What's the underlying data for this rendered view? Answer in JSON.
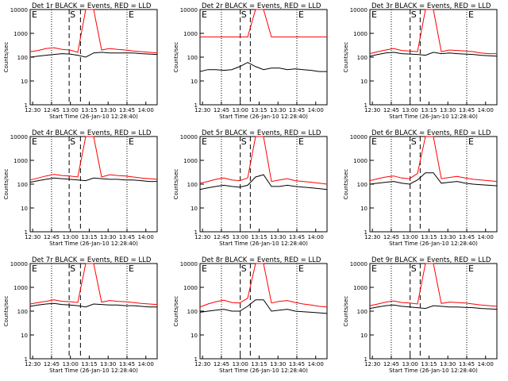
{
  "chart_data": [
    {
      "type": "line",
      "title": "Det 1r BLACK = Events, RED = LLD",
      "ylabel": "Counts/sec",
      "xlabel": "Start Time (26-Jan-10 12:28:40)",
      "yscale": "log",
      "ylim": [
        1,
        10000
      ],
      "ytick_labels": [
        "1",
        "10",
        "100",
        "1000",
        "10000"
      ],
      "xtick_labels": [
        "12:30",
        "12:45",
        "13:00",
        "13:15",
        "13:30",
        "13:45",
        "14:00"
      ],
      "markers": [
        "E",
        "S",
        "E"
      ],
      "event_start": "12:59",
      "event_end": "13:08",
      "series": [
        {
          "color": "#000000",
          "values": [
            100,
            110,
            120,
            130,
            140,
            135,
            120,
            100,
            150,
            160,
            150,
            150,
            150,
            150,
            140,
            135,
            130
          ]
        },
        {
          "color": "#ff0000",
          "values": [
            170,
            190,
            230,
            250,
            210,
            200,
            160,
            10000,
            10000,
            200,
            230,
            210,
            200,
            180,
            170,
            160,
            150
          ]
        }
      ]
    },
    {
      "type": "line",
      "title": "Det 2r BLACK = Events, RED = LLD",
      "ylabel": "Counts/sec",
      "xlabel": "Start Time (26-Jan-10 12:28:40)",
      "yscale": "log",
      "ylim": [
        1,
        10000
      ],
      "ytick_labels": [
        "1",
        "10",
        "100",
        "1000",
        "10000"
      ],
      "xtick_labels": [
        "12:30",
        "12:45",
        "13:00",
        "13:15",
        "13:30",
        "13:45",
        "14:00"
      ],
      "markers": [
        "E",
        "S",
        "E"
      ],
      "event_start": "13:00",
      "event_end": "13:08",
      "series": [
        {
          "color": "#000000",
          "values": [
            25,
            30,
            30,
            28,
            30,
            40,
            60,
            40,
            30,
            35,
            35,
            30,
            32,
            30,
            28,
            25,
            25
          ]
        },
        {
          "color": "#ff0000",
          "values": [
            700,
            700,
            700,
            700,
            700,
            700,
            700,
            10000,
            10000,
            700,
            700,
            700,
            700,
            700,
            700,
            700,
            700
          ]
        }
      ]
    },
    {
      "type": "line",
      "title": "Det 3r BLACK = Events, RED = LLD",
      "ylabel": "Counts/sec",
      "xlabel": "Start Time (26-Jan-10 12:28:40)",
      "yscale": "log",
      "ylim": [
        1,
        10000
      ],
      "ytick_labels": [
        "1",
        "10",
        "100",
        "1000",
        "10000"
      ],
      "xtick_labels": [
        "12:30",
        "12:45",
        "13:00",
        "13:15",
        "13:30",
        "13:45",
        "14:00"
      ],
      "markers": [
        "E",
        "S",
        "E"
      ],
      "event_start": "13:00",
      "event_end": "13:08",
      "series": [
        {
          "color": "#000000",
          "values": [
            110,
            130,
            150,
            160,
            140,
            135,
            130,
            120,
            160,
            140,
            150,
            140,
            135,
            130,
            120,
            115,
            110
          ]
        },
        {
          "color": "#ff0000",
          "values": [
            140,
            170,
            200,
            230,
            190,
            180,
            170,
            10000,
            10000,
            170,
            200,
            190,
            180,
            170,
            150,
            140,
            140
          ]
        }
      ]
    },
    {
      "type": "line",
      "title": "Det 4r BLACK = Events, RED = LLD",
      "ylabel": "Counts/sec",
      "xlabel": "Start Time (26-Jan-10 12:28:40)",
      "yscale": "log",
      "ylim": [
        1,
        10000
      ],
      "ytick_labels": [
        "1",
        "10",
        "100",
        "1000",
        "10000"
      ],
      "xtick_labels": [
        "12:30",
        "12:45",
        "13:00",
        "13:15",
        "13:30",
        "13:45",
        "14:00"
      ],
      "markers": [
        "E",
        "S",
        "E"
      ],
      "event_start": "12:59",
      "event_end": "13:08",
      "series": [
        {
          "color": "#000000",
          "values": [
            120,
            140,
            160,
            180,
            170,
            160,
            150,
            140,
            180,
            170,
            160,
            160,
            150,
            150,
            140,
            130,
            130
          ]
        },
        {
          "color": "#ff0000",
          "values": [
            150,
            180,
            220,
            260,
            230,
            220,
            200,
            10000,
            10000,
            200,
            250,
            230,
            220,
            200,
            180,
            170,
            160
          ]
        }
      ]
    },
    {
      "type": "line",
      "title": "Det 5r BLACK = Events, RED = LLD",
      "ylabel": "Counts/sec",
      "xlabel": "Start Time (26-Jan-10 12:28:40)",
      "yscale": "log",
      "ylim": [
        1,
        10000
      ],
      "ytick_labels": [
        "1",
        "10",
        "100",
        "1000",
        "10000"
      ],
      "xtick_labels": [
        "12:30",
        "12:45",
        "13:00",
        "13:15",
        "13:30",
        "13:45",
        "14:00"
      ],
      "markers": [
        "E",
        "S",
        "E"
      ],
      "event_start": "13:00",
      "event_end": "13:08",
      "series": [
        {
          "color": "#000000",
          "values": [
            60,
            70,
            80,
            90,
            80,
            75,
            90,
            200,
            250,
            80,
            80,
            90,
            80,
            75,
            70,
            65,
            60
          ]
        },
        {
          "color": "#ff0000",
          "values": [
            110,
            130,
            160,
            180,
            150,
            140,
            180,
            10000,
            10000,
            130,
            150,
            170,
            140,
            130,
            120,
            110,
            100
          ]
        }
      ]
    },
    {
      "type": "line",
      "title": "Det 6r BLACK = Events, RED = LLD",
      "ylabel": "Counts/sec",
      "xlabel": "Start Time (26-Jan-10 12:28:40)",
      "yscale": "log",
      "ylim": [
        1,
        10000
      ],
      "ytick_labels": [
        "1",
        "10",
        "100",
        "1000",
        "10000"
      ],
      "xtick_labels": [
        "12:30",
        "12:45",
        "13:00",
        "13:15",
        "13:30",
        "13:45",
        "14:00"
      ],
      "markers": [
        "E",
        "S",
        "E"
      ],
      "event_start": "13:00",
      "event_end": "13:08",
      "series": [
        {
          "color": "#000000",
          "values": [
            100,
            110,
            120,
            130,
            110,
            100,
            150,
            300,
            300,
            110,
            120,
            130,
            110,
            100,
            95,
            90,
            85
          ]
        },
        {
          "color": "#ff0000",
          "values": [
            140,
            170,
            200,
            220,
            180,
            170,
            280,
            10000,
            10000,
            170,
            190,
            210,
            180,
            160,
            150,
            140,
            130
          ]
        }
      ]
    },
    {
      "type": "line",
      "title": "Det 7r BLACK = Events, RED = LLD",
      "ylabel": "Counts/sec",
      "xlabel": "Start Time (26-Jan-10 12:28:40)",
      "yscale": "log",
      "ylim": [
        1,
        10000
      ],
      "ytick_labels": [
        "1",
        "10",
        "100",
        "1000",
        "10000"
      ],
      "xtick_labels": [
        "12:30",
        "12:45",
        "13:00",
        "13:15",
        "13:30",
        "13:45",
        "14:00"
      ],
      "markers": [
        "E",
        "S",
        "E"
      ],
      "event_start": "12:59",
      "event_end": "13:08",
      "series": [
        {
          "color": "#000000",
          "values": [
            160,
            180,
            200,
            210,
            190,
            180,
            170,
            150,
            200,
            190,
            180,
            180,
            170,
            170,
            160,
            150,
            150
          ]
        },
        {
          "color": "#ff0000",
          "values": [
            200,
            230,
            260,
            300,
            260,
            250,
            230,
            10000,
            10000,
            240,
            280,
            260,
            250,
            230,
            210,
            200,
            190
          ]
        }
      ]
    },
    {
      "type": "line",
      "title": "Det 8r BLACK = Events, RED = LLD",
      "ylabel": "Counts/sec",
      "xlabel": "Start Time (26-Jan-10 12:28:40)",
      "yscale": "log",
      "ylim": [
        1,
        10000
      ],
      "ytick_labels": [
        "1",
        "10",
        "100",
        "1000",
        "10000"
      ],
      "xtick_labels": [
        "12:30",
        "12:45",
        "13:00",
        "13:15",
        "13:30",
        "13:45",
        "14:00"
      ],
      "markers": [
        "E",
        "S",
        "E"
      ],
      "event_start": "13:00",
      "event_end": "13:08",
      "series": [
        {
          "color": "#000000",
          "values": [
            90,
            100,
            110,
            120,
            100,
            100,
            160,
            300,
            300,
            100,
            110,
            120,
            100,
            95,
            90,
            85,
            80
          ]
        },
        {
          "color": "#ff0000",
          "values": [
            150,
            200,
            250,
            290,
            230,
            220,
            350,
            10000,
            10000,
            220,
            260,
            280,
            230,
            200,
            180,
            160,
            150
          ]
        }
      ]
    },
    {
      "type": "line",
      "title": "Det 9r BLACK = Events, RED = LLD",
      "ylabel": "Counts/sec",
      "xlabel": "Start Time (26-Jan-10 12:28:40)",
      "yscale": "log",
      "ylim": [
        1,
        10000
      ],
      "ytick_labels": [
        "1",
        "10",
        "100",
        "1000",
        "10000"
      ],
      "xtick_labels": [
        "12:30",
        "12:45",
        "13:00",
        "13:15",
        "13:30",
        "13:45",
        "14:00"
      ],
      "markers": [
        "E",
        "S",
        "E"
      ],
      "event_start": "13:00",
      "event_end": "13:08",
      "series": [
        {
          "color": "#000000",
          "values": [
            130,
            150,
            170,
            180,
            160,
            150,
            140,
            130,
            170,
            160,
            150,
            150,
            145,
            140,
            130,
            125,
            120
          ]
        },
        {
          "color": "#ff0000",
          "values": [
            170,
            200,
            240,
            270,
            230,
            220,
            200,
            10000,
            10000,
            210,
            240,
            230,
            220,
            200,
            180,
            170,
            160
          ]
        }
      ]
    }
  ]
}
